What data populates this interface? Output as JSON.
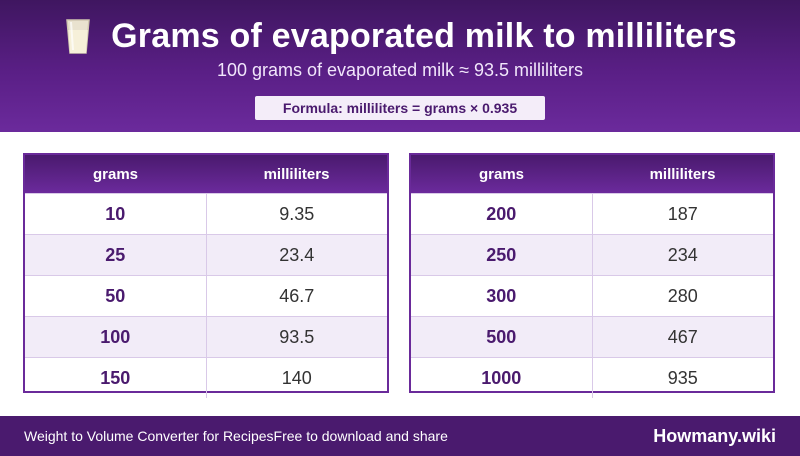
{
  "header": {
    "icon": "milk-glass-icon",
    "title": "Grams of evaporated milk to milliliters",
    "subtitle": "100 grams of evaporated milk ≈ 93.5 milliliters",
    "formula": "Formula: milliliters = grams × 0.935"
  },
  "tables": [
    {
      "headers": [
        "grams",
        "milliliters"
      ],
      "rows": [
        {
          "grams": "10",
          "ml": "9.35"
        },
        {
          "grams": "25",
          "ml": "23.4"
        },
        {
          "grams": "50",
          "ml": "46.7"
        },
        {
          "grams": "100",
          "ml": "93.5"
        },
        {
          "grams": "150",
          "ml": "140"
        }
      ]
    },
    {
      "headers": [
        "grams",
        "milliliters"
      ],
      "rows": [
        {
          "grams": "200",
          "ml": "187"
        },
        {
          "grams": "250",
          "ml": "234"
        },
        {
          "grams": "300",
          "ml": "280"
        },
        {
          "grams": "500",
          "ml": "467"
        },
        {
          "grams": "1000",
          "ml": "935"
        }
      ]
    }
  ],
  "footer": {
    "left": "Weight to Volume Converter for RecipesFree to download and share",
    "right": "Howmany.wiki"
  },
  "colors": {
    "primary": "#4a1a6e",
    "accent": "#6b2a9c",
    "row_alt": "#f2ecf8"
  }
}
